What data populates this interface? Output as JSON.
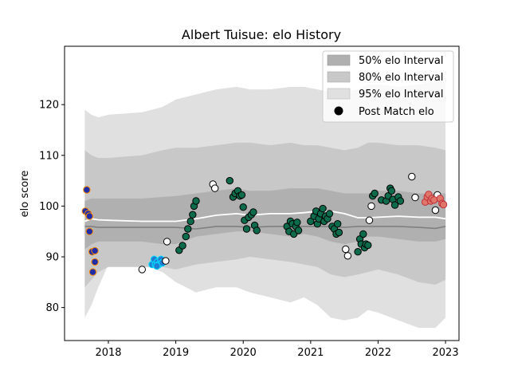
{
  "chart_data": {
    "type": "scatter",
    "title": "Albert Tuisue: elo History",
    "xlabel": "",
    "ylabel": "elo score",
    "xlim": [
      2017.35,
      2023.2
    ],
    "ylim": [
      73.5,
      131.5
    ],
    "x_ticks": [
      2018,
      2019,
      2020,
      2021,
      2022,
      2023
    ],
    "x_tick_labels": [
      "2018",
      "2019",
      "2020",
      "2021",
      "2022",
      "2023"
    ],
    "y_ticks": [
      80,
      90,
      100,
      110,
      120
    ],
    "y_tick_labels": [
      "80",
      "90",
      "100",
      "110",
      "120"
    ],
    "grid": false,
    "legend_position": "top-right",
    "legend": {
      "band50": "50% elo Interval",
      "band80": "80% elo Interval",
      "band95": "95% elo Interval",
      "points": "Post Match elo"
    },
    "colors": {
      "band50": "#b0b0b0",
      "band80": "#c8c8c8",
      "band95": "#e0e0e0",
      "mean_line": "#ffffff",
      "median_line": "#808080"
    },
    "bands": {
      "x": [
        2017.65,
        2017.75,
        2017.85,
        2018.0,
        2018.5,
        2018.8,
        2019.0,
        2019.3,
        2019.6,
        2019.9,
        2020.1,
        2020.4,
        2020.7,
        2020.9,
        2021.1,
        2021.3,
        2021.5,
        2021.7,
        2021.85,
        2022.0,
        2022.3,
        2022.6,
        2022.85,
        2023.0
      ],
      "lo95": [
        78.0,
        80.5,
        84.0,
        88.5,
        88.5,
        87.0,
        85.0,
        83.0,
        84.0,
        84.0,
        83.0,
        82.0,
        81.0,
        82.0,
        80.5,
        78.0,
        77.5,
        78.0,
        79.5,
        79.0,
        77.5,
        76.0,
        76.0,
        78.0
      ],
      "lo80": [
        84.0,
        85.5,
        87.0,
        88.0,
        88.0,
        88.0,
        87.5,
        88.5,
        89.0,
        89.5,
        90.0,
        89.5,
        89.0,
        88.5,
        88.0,
        86.5,
        86.0,
        86.5,
        87.0,
        87.5,
        86.5,
        85.0,
        84.5,
        85.5
      ],
      "lo50": [
        91.5,
        92.5,
        93.0,
        93.0,
        93.0,
        92.5,
        92.5,
        94.0,
        94.5,
        95.0,
        95.0,
        94.5,
        94.0,
        94.5,
        94.0,
        93.0,
        92.5,
        93.0,
        94.0,
        94.0,
        93.5,
        93.0,
        93.0,
        93.5
      ],
      "mean": [
        97.0,
        97.5,
        97.3,
        97.2,
        97.0,
        97.0,
        97.0,
        97.5,
        98.2,
        98.5,
        98.2,
        98.5,
        98.5,
        98.7,
        99.0,
        99.0,
        98.5,
        97.7,
        97.7,
        97.8,
        98.0,
        97.8,
        97.8,
        97.5
      ],
      "median": [
        96.0,
        96.0,
        95.8,
        95.8,
        95.8,
        95.8,
        95.8,
        95.5,
        96.0,
        96.0,
        95.8,
        96.0,
        96.0,
        96.0,
        96.0,
        96.0,
        95.8,
        96.0,
        96.0,
        96.0,
        96.0,
        95.8,
        95.6,
        96.0
      ],
      "hi50": [
        101.0,
        101.5,
        101.5,
        101.5,
        101.5,
        101.8,
        102.0,
        102.5,
        103.0,
        103.5,
        103.0,
        103.0,
        103.5,
        103.5,
        103.5,
        103.0,
        102.5,
        102.5,
        102.5,
        103.0,
        103.0,
        102.5,
        102.5,
        102.5
      ],
      "hi80": [
        111.0,
        110.0,
        109.5,
        109.5,
        110.0,
        111.0,
        111.5,
        111.5,
        112.0,
        112.5,
        112.5,
        112.0,
        112.5,
        112.0,
        112.0,
        111.5,
        111.0,
        111.5,
        112.5,
        112.5,
        112.0,
        112.0,
        111.5,
        111.0
      ],
      "hi95": [
        119.0,
        118.0,
        117.5,
        118.0,
        118.5,
        119.5,
        121.0,
        122.0,
        123.0,
        123.5,
        123.0,
        123.0,
        123.5,
        123.5,
        123.0,
        122.5,
        122.5,
        123.0,
        124.0,
        124.0,
        123.5,
        124.0,
        124.5,
        124.5
      ]
    },
    "series": [
      {
        "fill": "#1f2ea8",
        "edge": "#ff8c00",
        "points": [
          [
            2017.68,
            103.2
          ],
          [
            2017.66,
            99.0
          ],
          [
            2017.7,
            98.5
          ],
          [
            2017.72,
            98.0
          ],
          [
            2017.72,
            95.0
          ],
          [
            2017.76,
            91.0
          ],
          [
            2017.8,
            91.2
          ],
          [
            2017.8,
            89.0
          ],
          [
            2017.77,
            87.0
          ]
        ]
      },
      {
        "fill": "#1e7fd4",
        "edge": "#00e5ff",
        "points": [
          [
            2018.65,
            88.5
          ],
          [
            2018.68,
            89.5
          ],
          [
            2018.7,
            88.5
          ],
          [
            2018.73,
            89.0
          ],
          [
            2018.75,
            88.5
          ],
          [
            2018.78,
            89.5
          ],
          [
            2018.8,
            88.8
          ],
          [
            2018.72,
            88.2
          ]
        ]
      },
      {
        "fill": "#0b6b4a",
        "edge": "#000000",
        "points": [
          [
            2019.05,
            91.3
          ],
          [
            2019.1,
            92.2
          ],
          [
            2019.15,
            94.0
          ],
          [
            2019.18,
            95.5
          ],
          [
            2019.22,
            97.0
          ],
          [
            2019.25,
            98.3
          ],
          [
            2019.27,
            100.0
          ],
          [
            2019.3,
            101.0
          ],
          [
            2019.8,
            105.0
          ],
          [
            2019.85,
            101.8
          ],
          [
            2019.88,
            102.5
          ],
          [
            2019.92,
            103.0
          ],
          [
            2019.95,
            102.0
          ],
          [
            2019.98,
            102.2
          ],
          [
            2020.0,
            99.8
          ],
          [
            2020.02,
            97.2
          ],
          [
            2020.05,
            95.5
          ],
          [
            2020.08,
            97.8
          ],
          [
            2020.12,
            98.3
          ],
          [
            2020.15,
            98.8
          ],
          [
            2020.17,
            96.2
          ],
          [
            2020.2,
            95.2
          ],
          [
            2020.65,
            96.0
          ],
          [
            2020.68,
            95.0
          ],
          [
            2020.7,
            97.0
          ],
          [
            2020.73,
            96.5
          ],
          [
            2020.75,
            94.5
          ],
          [
            2020.78,
            96.0
          ],
          [
            2020.8,
            96.8
          ],
          [
            2020.82,
            95.2
          ],
          [
            2021.0,
            97.0
          ],
          [
            2021.05,
            98.0
          ],
          [
            2021.08,
            99.0
          ],
          [
            2021.1,
            96.5
          ],
          [
            2021.12,
            97.5
          ],
          [
            2021.15,
            98.5
          ],
          [
            2021.18,
            99.5
          ],
          [
            2021.2,
            97.0
          ],
          [
            2021.22,
            98.0
          ],
          [
            2021.25,
            97.5
          ],
          [
            2021.28,
            98.5
          ],
          [
            2021.32,
            96.0
          ],
          [
            2021.35,
            95.5
          ],
          [
            2021.38,
            94.5
          ],
          [
            2021.4,
            96.5
          ],
          [
            2021.42,
            94.8
          ],
          [
            2021.7,
            91.0
          ],
          [
            2021.73,
            93.5
          ],
          [
            2021.75,
            92.5
          ],
          [
            2021.78,
            94.5
          ],
          [
            2021.8,
            91.8
          ],
          [
            2021.82,
            92.5
          ],
          [
            2021.85,
            92.3
          ],
          [
            2021.92,
            102.0
          ],
          [
            2021.95,
            102.5
          ],
          [
            2022.05,
            101.2
          ],
          [
            2022.12,
            101.0
          ],
          [
            2022.15,
            102.0
          ],
          [
            2022.18,
            103.5
          ],
          [
            2022.2,
            103.0
          ],
          [
            2022.22,
            101.3
          ],
          [
            2022.25,
            100.2
          ],
          [
            2022.3,
            101.8
          ],
          [
            2022.33,
            101.0
          ]
        ]
      },
      {
        "fill": "#ffffff",
        "edge": "#000000",
        "points": [
          [
            2018.5,
            87.5
          ],
          [
            2018.87,
            93.0
          ],
          [
            2018.85,
            89.2
          ],
          [
            2019.55,
            104.3
          ],
          [
            2019.58,
            103.5
          ],
          [
            2021.52,
            91.5
          ],
          [
            2021.55,
            90.2
          ],
          [
            2021.87,
            97.2
          ],
          [
            2021.9,
            100.0
          ],
          [
            2022.5,
            105.8
          ],
          [
            2022.55,
            101.7
          ],
          [
            2022.85,
            99.2
          ],
          [
            2022.88,
            102.2
          ]
        ]
      },
      {
        "fill": "#e0766a",
        "edge": "#c0303a",
        "points": [
          [
            2022.7,
            100.8
          ],
          [
            2022.73,
            101.8
          ],
          [
            2022.75,
            102.3
          ],
          [
            2022.78,
            101.0
          ],
          [
            2022.8,
            101.5
          ],
          [
            2022.83,
            101.2
          ],
          [
            2022.92,
            101.5
          ],
          [
            2022.95,
            100.5
          ],
          [
            2022.97,
            100.3
          ]
        ]
      }
    ]
  }
}
